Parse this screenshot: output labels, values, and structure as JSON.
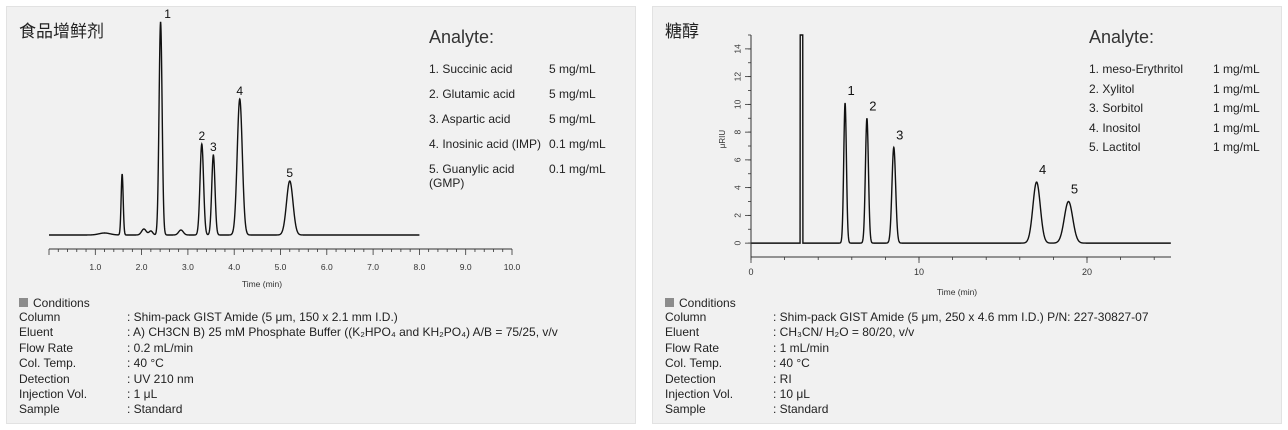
{
  "chart_data": [
    {
      "type": "line",
      "title": "食品增鲜剂",
      "xlabel": "Time (min)",
      "ylabel": "",
      "xlim": [
        0,
        10
      ],
      "x_ticks": [
        "1.0",
        "2.0",
        "3.0",
        "4.0",
        "5.0",
        "6.0",
        "7.0",
        "8.0",
        "9.0",
        "10.0"
      ],
      "y_ticks": [],
      "signal_end_x": 8.0,
      "baseline": 0,
      "ylim": [
        -8,
        220
      ],
      "peaks": [
        {
          "label": "",
          "rt": 1.58,
          "height": 61,
          "width": 0.022
        },
        {
          "label": "1",
          "rt": 2.41,
          "height": 213,
          "width": 0.033
        },
        {
          "label": "2",
          "rt": 3.3,
          "height": 91,
          "width": 0.038
        },
        {
          "label": "3",
          "rt": 3.55,
          "height": 80,
          "width": 0.035
        },
        {
          "label": "4",
          "rt": 4.12,
          "height": 136,
          "width": 0.055
        },
        {
          "label": "5",
          "rt": 5.2,
          "height": 54,
          "width": 0.07
        }
      ],
      "analyte": {
        "heading": "Analyte:",
        "items": [
          {
            "name": "1. Succinic acid",
            "conc": "5 mg/mL"
          },
          {
            "name": "2. Glutamic acid",
            "conc": "5 mg/mL"
          },
          {
            "name": "3. Aspartic acid",
            "conc": "5 mg/mL"
          },
          {
            "name": "4. Inosinic acid (IMP)",
            "conc": "0.1 mg/mL"
          },
          {
            "name": "5. Guanylic acid (GMP)",
            "conc": "0.1 mg/mL"
          }
        ]
      },
      "conditions": {
        "heading": "Conditions",
        "rows": [
          {
            "label": "Column",
            "value": ": Shim-pack GIST Amide (5 μm, 150 x 2.1 mm I.D.)"
          },
          {
            "label": "Eluent",
            "value": ": A) CH3CN   B) 25 mM Phosphate Buffer ((K₂HPO₄ and KH₂PO₄)     A/B = 75/25, v/v"
          },
          {
            "label": "Flow Rate",
            "value": ": 0.2 mL/min"
          },
          {
            "label": "Col. Temp.",
            "value": ": 40 °C"
          },
          {
            "label": "Detection",
            "value": ": UV 210 nm"
          },
          {
            "label": "Injection Vol.",
            "value": ": 1 μL"
          },
          {
            "label": "Sample",
            "value": ": Standard"
          }
        ]
      }
    },
    {
      "type": "line",
      "title": "糖醇",
      "xlabel": "Time (min)",
      "ylabel": "RIU",
      "ylabel_prefix": "μ",
      "xlim": [
        0,
        25
      ],
      "x_ticks": [
        "0",
        "10",
        "20"
      ],
      "x_tick_values": [
        0,
        10,
        20
      ],
      "ylim": [
        -1,
        15
      ],
      "y_ticks": [
        "0",
        "2",
        "4",
        "6",
        "8",
        "10",
        "12",
        "14"
      ],
      "y_tick_values": [
        0,
        2,
        4,
        6,
        8,
        10,
        12,
        14
      ],
      "baseline": 0,
      "signal_end_x": 25,
      "peaks": [
        {
          "label": "",
          "rt": 3.0,
          "height": 15,
          "width": 0.08,
          "type": "solvent"
        },
        {
          "label": "1",
          "rt": 5.6,
          "height": 10.1,
          "width": 0.08
        },
        {
          "label": "2",
          "rt": 6.9,
          "height": 9.0,
          "width": 0.09
        },
        {
          "label": "3",
          "rt": 8.5,
          "height": 6.9,
          "width": 0.11
        },
        {
          "label": "4",
          "rt": 17.0,
          "height": 4.4,
          "width": 0.22
        },
        {
          "label": "5",
          "rt": 18.9,
          "height": 3.0,
          "width": 0.25
        }
      ],
      "analyte": {
        "heading": "Analyte:",
        "items": [
          {
            "name": "1. meso-Erythritol",
            "conc": "1 mg/mL"
          },
          {
            "name": "2. Xylitol",
            "conc": "1 mg/mL"
          },
          {
            "name": "3. Sorbitol",
            "conc": "1 mg/mL"
          },
          {
            "name": "4. Inositol",
            "conc": "1 mg/mL"
          },
          {
            "name": "5. Lactitol",
            "conc": "1 mg/mL"
          }
        ]
      },
      "conditions": {
        "heading": "Conditions",
        "rows": [
          {
            "label": "Column",
            "value": ": Shim-pack GIST Amide (5 μm, 250 x 4.6 mm I.D.) P/N: 227-30827-07"
          },
          {
            "label": "Eluent",
            "value": ": CH₃CN/ H₂O = 80/20, v/v"
          },
          {
            "label": "Flow Rate",
            "value": ": 1 mL/min"
          },
          {
            "label": "Col. Temp.",
            "value": ": 40 °C"
          },
          {
            "label": "Detection",
            "value": ": RI"
          },
          {
            "label": "Injection Vol.",
            "value": ": 10 μL"
          },
          {
            "label": "Sample",
            "value": ": Standard"
          }
        ]
      }
    }
  ]
}
